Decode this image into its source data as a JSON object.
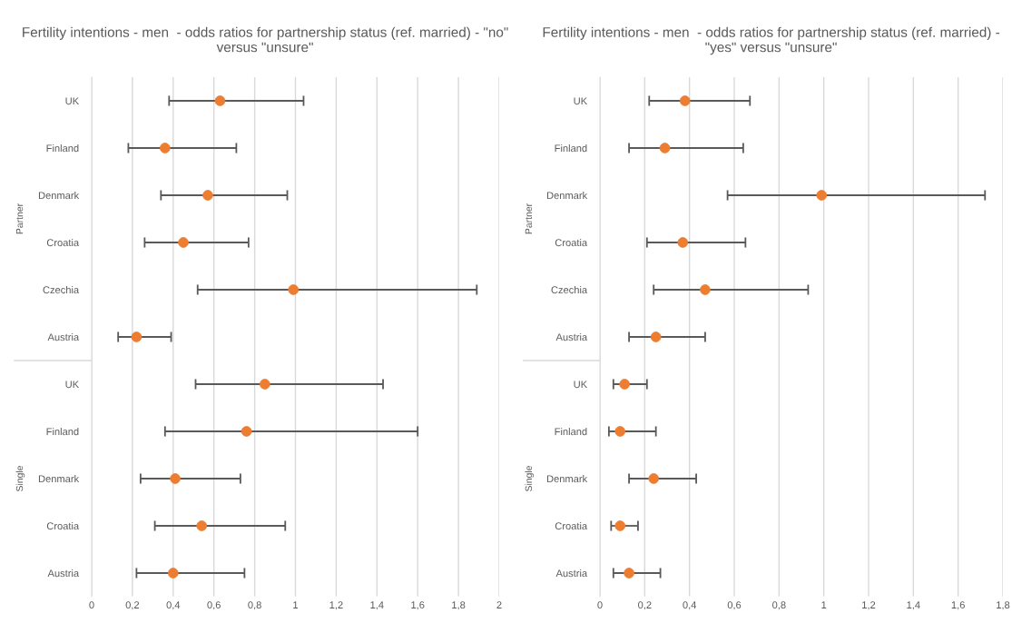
{
  "chart_data": [
    {
      "type": "scatter",
      "orientation": "horizontal",
      "title": "Fertility intentions - men  - odds ratios for partnership status (ref. married) - \"no\" versus \"unsure\"",
      "categories": [
        "UK",
        "Finland",
        "Denmark",
        "Croatia",
        "Czechia",
        "Austria",
        "UK",
        "Finland",
        "Denmark",
        "Croatia",
        "Austria"
      ],
      "series": [
        {
          "color": "#ed7d31",
          "values": [
            0.63,
            0.36,
            0.57,
            0.45,
            0.99,
            0.22,
            null,
            null,
            null,
            null,
            null
          ],
          "errors": [
            [
              0.38,
              1.04
            ],
            [
              0.18,
              0.71
            ],
            [
              0.34,
              0.96
            ],
            [
              0.26,
              0.77
            ],
            [
              0.52,
              1.89
            ],
            [
              0.13,
              0.39
            ],
            null,
            null,
            null,
            null,
            null
          ]
        },
        {
          "color": "#ed7d31",
          "values": [
            null,
            null,
            null,
            null,
            null,
            null,
            0.85,
            0.76,
            0.41,
            0.54,
            0.4
          ],
          "errors": [
            null,
            null,
            null,
            null,
            null,
            null,
            [
              0.51,
              1.43
            ],
            [
              0.36,
              1.6
            ],
            [
              0.24,
              0.73
            ],
            [
              0.31,
              0.95
            ],
            [
              0.22,
              0.75
            ]
          ]
        }
      ],
      "annotations": [
        "Partner",
        "Single"
      ],
      "xlim": [
        0,
        2
      ],
      "xticks": [
        0,
        {
          "value": 0.2,
          "label": "0,2"
        },
        {
          "value": 0.4,
          "label": "0,4"
        },
        {
          "value": 0.6,
          "label": "0,6"
        },
        {
          "value": 0.8,
          "label": "0,8"
        },
        1,
        {
          "value": 1.2,
          "label": "1,2"
        },
        {
          "value": 1.4,
          "label": "1,4"
        },
        {
          "value": 1.6,
          "label": "1,6"
        },
        {
          "value": 1.8,
          "label": "1,8"
        },
        2
      ],
      "grid": "x",
      "marker": "circle",
      "legend": false
    },
    {
      "type": "scatter",
      "orientation": "horizontal",
      "title": "Fertility intentions - men  - odds ratios for partnership status (ref. married) - \"yes\" versus \"unsure\"",
      "categories": [
        "UK",
        "Finland",
        "Denmark",
        "Croatia",
        "Czechia",
        "Austria",
        "UK",
        "Finland",
        "Denmark",
        "Croatia",
        "Austria"
      ],
      "series": [
        {
          "color": "#ed7d31",
          "values": [
            0.38,
            0.29,
            0.99,
            0.37,
            0.47,
            0.25,
            null,
            null,
            null,
            null,
            null
          ],
          "errors": [
            [
              0.22,
              0.67
            ],
            [
              0.13,
              0.64
            ],
            [
              0.57,
              1.72
            ],
            [
              0.21,
              0.65
            ],
            [
              0.24,
              0.93
            ],
            [
              0.13,
              0.47
            ],
            null,
            null,
            null,
            null,
            null
          ]
        },
        {
          "color": "#ed7d31",
          "values": [
            null,
            null,
            null,
            null,
            null,
            null,
            0.11,
            0.09,
            0.24,
            0.09,
            0.13
          ],
          "errors": [
            null,
            null,
            null,
            null,
            null,
            null,
            [
              0.06,
              0.21
            ],
            [
              0.04,
              0.25
            ],
            [
              0.13,
              0.43
            ],
            [
              0.05,
              0.17
            ],
            [
              0.06,
              0.27
            ]
          ]
        }
      ],
      "annotations": [
        "Partner",
        "Single"
      ],
      "xlim": [
        0,
        1.8
      ],
      "xticks": [
        0,
        {
          "value": 0.2,
          "label": "0,2"
        },
        {
          "value": 0.4,
          "label": "0,4"
        },
        {
          "value": 0.6,
          "label": "0,6"
        },
        {
          "value": 0.8,
          "label": "0,8"
        },
        1,
        {
          "value": 1.2,
          "label": "1,2"
        },
        {
          "value": 1.4,
          "label": "1,4"
        },
        {
          "value": 1.6,
          "label": "1,6"
        },
        {
          "value": 1.8,
          "label": "1,8"
        }
      ],
      "grid": "x",
      "marker": "circle",
      "legend": false
    }
  ]
}
